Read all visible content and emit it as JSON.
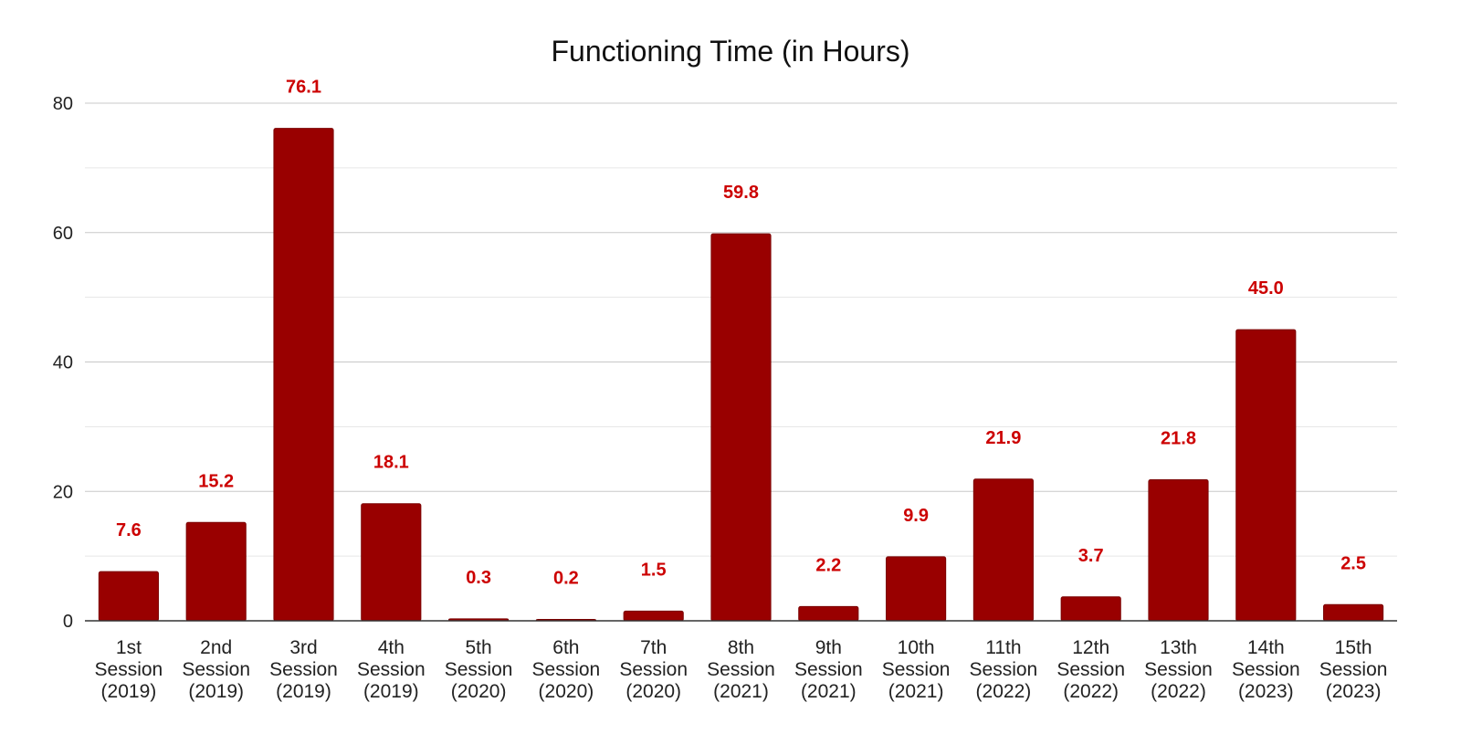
{
  "chart_data": {
    "type": "bar",
    "title": "Functioning Time (in Hours)",
    "xlabel": "",
    "ylabel": "",
    "ylim": [
      0,
      80
    ],
    "yticks": [
      "0",
      "20",
      "40",
      "60",
      "80"
    ],
    "grid": true,
    "legend": "none",
    "bar_color": "#990000",
    "label_color": "#cc0000",
    "categories": [
      [
        "1st",
        "Session",
        "(2019)"
      ],
      [
        "2nd",
        "Session",
        "(2019)"
      ],
      [
        "3rd",
        "Session",
        "(2019)"
      ],
      [
        "4th",
        "Session",
        "(2019)"
      ],
      [
        "5th",
        "Session",
        "(2020)"
      ],
      [
        "6th",
        "Session",
        "(2020)"
      ],
      [
        "7th",
        "Session",
        "(2020)"
      ],
      [
        "8th",
        "Session",
        "(2021)"
      ],
      [
        "9th",
        "Session",
        "(2021)"
      ],
      [
        "10th",
        "Session",
        "(2021)"
      ],
      [
        "11th",
        "Session",
        "(2022)"
      ],
      [
        "12th",
        "Session",
        "(2022)"
      ],
      [
        "13th",
        "Session",
        "(2022)"
      ],
      [
        "14th",
        "Session",
        "(2023)"
      ],
      [
        "15th",
        "Session",
        "(2023)"
      ]
    ],
    "values": [
      7.6,
      15.2,
      76.1,
      18.1,
      0.3,
      0.2,
      1.5,
      59.8,
      2.2,
      9.9,
      21.9,
      3.7,
      21.8,
      45.0,
      2.5
    ],
    "value_labels": [
      "7.6",
      "15.2",
      "76.1",
      "18.1",
      "0.3",
      "0.2",
      "1.5",
      "59.8",
      "2.2",
      "9.9",
      "21.9",
      "3.7",
      "21.8",
      "45.0",
      "2.5"
    ]
  }
}
